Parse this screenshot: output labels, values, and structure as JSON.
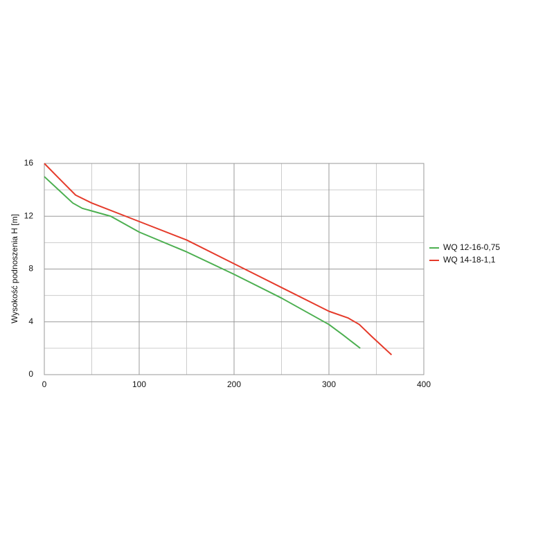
{
  "chart_data": {
    "type": "line",
    "y_label": "Wysokość podnoszenia H [m]",
    "xlim": [
      0,
      400
    ],
    "xticks": [
      0,
      100,
      200,
      300,
      400
    ],
    "xminorticks": [
      50,
      150,
      250,
      350
    ],
    "ylim": [
      0,
      16
    ],
    "yticks": [
      0,
      4,
      8,
      12,
      16
    ],
    "yminorticks": [
      2,
      6,
      10,
      14
    ],
    "grid": true,
    "legend": "right",
    "series": [
      {
        "name": "WQ 12-16-0,75",
        "color": "#4caf50",
        "x": [
          0,
          15,
          30,
          40,
          50,
          70,
          100,
          150,
          200,
          250,
          280,
          300,
          315,
          333
        ],
        "values": [
          15,
          14,
          13,
          12.6,
          12.4,
          12,
          10.8,
          9.3,
          7.6,
          5.8,
          4.6,
          3.8,
          3,
          2
        ]
      },
      {
        "name": "WQ 14-18-1,1",
        "color": "#e53a2a",
        "x": [
          0,
          15,
          33,
          50,
          100,
          150,
          200,
          250,
          300,
          320,
          332,
          345,
          366
        ],
        "values": [
          16,
          14.9,
          13.6,
          13,
          11.6,
          10.2,
          8.4,
          6.6,
          4.8,
          4.3,
          3.8,
          2.9,
          1.5
        ]
      }
    ]
  }
}
